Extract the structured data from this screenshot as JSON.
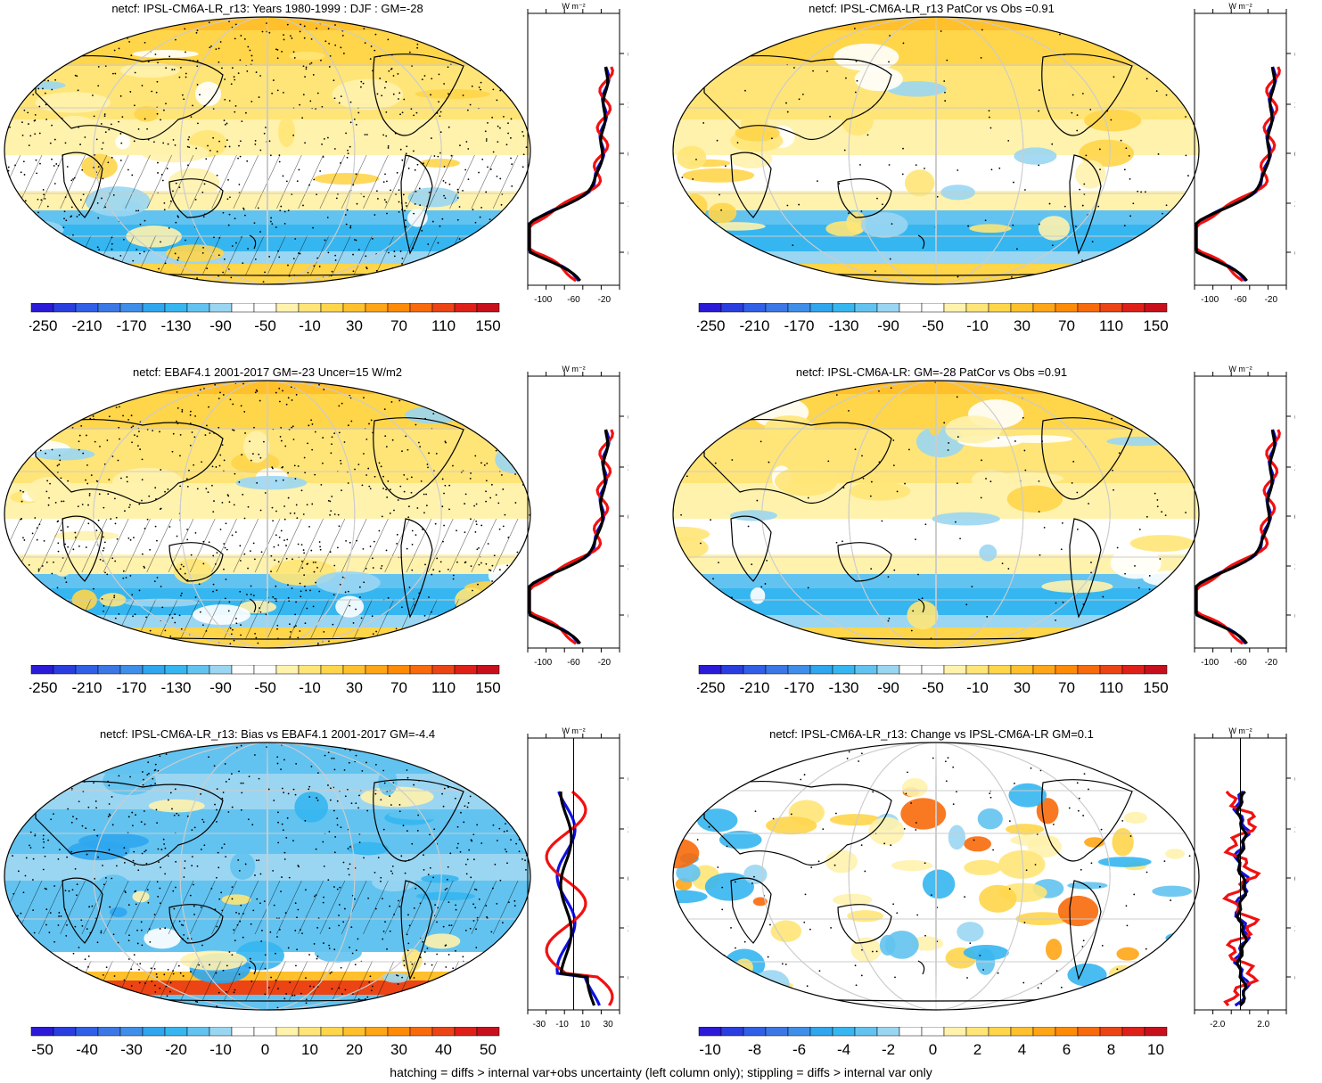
{
  "footer": "hatching = diffs > internal var+obs uncertainty (left column only); stippling = diffs > internal var only",
  "lat_labels": [
    "60N",
    "30N",
    "0",
    "30S",
    "60S"
  ],
  "units_label": "W m⁻²",
  "palettes": {
    "main": [
      "#2b1ad8",
      "#2a3ee0",
      "#3060e8",
      "#3b78e6",
      "#3f8fea",
      "#2fa6ee",
      "#35b6f0",
      "#62c3f0",
      "#9ad6f2",
      "#ffffff",
      "#ffffff",
      "#fff2ad",
      "#ffe577",
      "#ffd54a",
      "#ffc02c",
      "#ffa516",
      "#ff8a06",
      "#f86a0b",
      "#ec4414",
      "#df2019",
      "#c8101c"
    ],
    "change": [
      "#2b1ad8",
      "#2a3ee0",
      "#3060e8",
      "#3b78e6",
      "#3f8fea",
      "#2fa6ee",
      "#35b6f0",
      "#62c3f0",
      "#9ad6f2",
      "#ffffff",
      "#ffffff",
      "#fff2ad",
      "#ffe577",
      "#ffd54a",
      "#ffc02c",
      "#ffa516",
      "#ff8a06",
      "#f86a0b",
      "#ec4414",
      "#df2019",
      "#c8101c"
    ]
  },
  "panels": [
    {
      "id": "p1",
      "title": "netcf: IPSL-CM6A-LR_r13: Years 1980-1999 : DJF : GM=-28",
      "colorbar_labels": [
        "-250",
        "-210",
        "-170",
        "-130",
        "-90",
        "-50",
        "-10",
        "30",
        "70",
        "110",
        "150"
      ],
      "profile_ticks": [
        "-100",
        "-60",
        "-20"
      ],
      "palette": "main",
      "hatch": true,
      "stipple": "dense",
      "map_style": "mean"
    },
    {
      "id": "p2",
      "title": "netcf: IPSL-CM6A-LR_r13 PatCor vs Obs =0.91",
      "colorbar_labels": [
        "-250",
        "-210",
        "-170",
        "-130",
        "-90",
        "-50",
        "-10",
        "30",
        "70",
        "110",
        "150"
      ],
      "profile_ticks": [
        "-100",
        "-60",
        "-20"
      ],
      "palette": "main",
      "hatch": false,
      "stipple": "sparse",
      "map_style": "mean"
    },
    {
      "id": "p3",
      "title": "netcf: EBAF4.1 2001-2017 GM=-23 Uncer=15 W/m2",
      "colorbar_labels": [
        "-250",
        "-210",
        "-170",
        "-130",
        "-90",
        "-50",
        "-10",
        "30",
        "70",
        "110",
        "150"
      ],
      "profile_ticks": [
        "-100",
        "-60",
        "-20"
      ],
      "palette": "main",
      "hatch": true,
      "stipple": "dense",
      "map_style": "mean"
    },
    {
      "id": "p4",
      "title": "netcf: IPSL-CM6A-LR: GM=-28 PatCor vs Obs =0.91",
      "colorbar_labels": [
        "-250",
        "-210",
        "-170",
        "-130",
        "-90",
        "-50",
        "-10",
        "30",
        "70",
        "110",
        "150"
      ],
      "profile_ticks": [
        "-100",
        "-60",
        "-20"
      ],
      "palette": "main",
      "hatch": false,
      "stipple": "sparse",
      "map_style": "mean"
    },
    {
      "id": "p5",
      "title": "netcf: IPSL-CM6A-LR_r13: Bias vs EBAF4.1 2001-2017 GM=-4.4",
      "colorbar_labels": [
        "-50",
        "-40",
        "-30",
        "-20",
        "-10",
        "0",
        "10",
        "20",
        "30",
        "40",
        "50"
      ],
      "profile_ticks": [
        "-30",
        "-10",
        "10",
        "30"
      ],
      "palette": "main",
      "hatch": true,
      "stipple": "dense",
      "map_style": "bias"
    },
    {
      "id": "p6",
      "title": "netcf: IPSL-CM6A-LR_r13: Change vs IPSL-CM6A-LR GM=0.1",
      "colorbar_labels": [
        "-10",
        "-8",
        "-6",
        "-4",
        "-2",
        "0",
        "2",
        "4",
        "6",
        "8",
        "10"
      ],
      "profile_ticks": [
        "-2.0",
        "2.0"
      ],
      "palette": "change",
      "hatch": false,
      "stipple": "sparse",
      "map_style": "change"
    }
  ]
}
